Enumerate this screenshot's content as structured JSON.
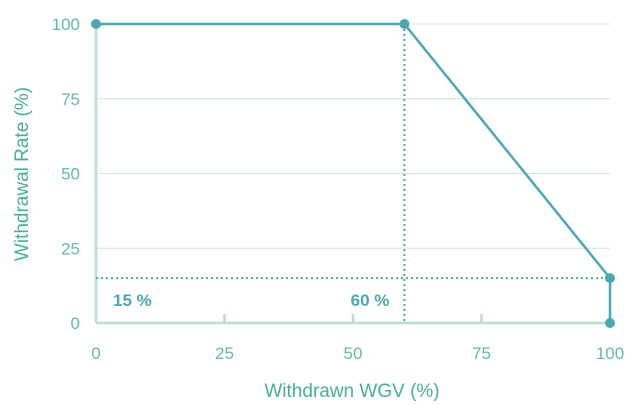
{
  "chart_data": {
    "type": "line",
    "x": [
      0,
      60,
      100,
      100
    ],
    "series": [
      {
        "values": [
          100,
          100,
          15,
          0
        ]
      }
    ],
    "xlabel": "Withdrawn WGV (%)",
    "ylabel": "Withdrawal Rate (%)",
    "xlim": [
      0,
      100
    ],
    "ylim": [
      0,
      100
    ],
    "xticks": [
      "0",
      "25",
      "50",
      "75",
      "100"
    ],
    "yticks": [
      "0",
      "25",
      "50",
      "75",
      "100"
    ],
    "grid": "horizontal",
    "reference_lines": [
      {
        "axis": "x",
        "value": 60,
        "label": "60 %"
      },
      {
        "axis": "y",
        "value": 15,
        "label": "15 %"
      }
    ],
    "colors": {
      "line": "#4aa8b4",
      "axis": "#b9dfc8",
      "grid": "#cfe7d8",
      "text": "#5fbf9a"
    }
  }
}
